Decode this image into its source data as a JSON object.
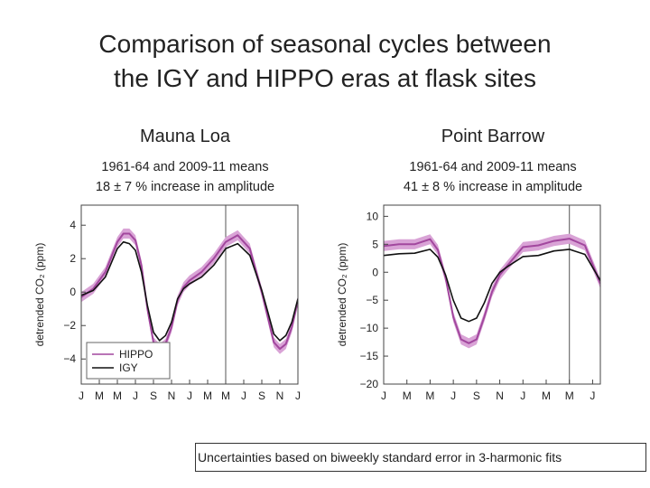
{
  "slide": {
    "title_line1": "Comparison of seasonal cycles between",
    "title_line2": "the IGY and HIPPO eras at flask sites",
    "footnote": "Uncertainties based on biweekly standard error in 3-harmonic fits"
  },
  "sites": [
    {
      "name": "Mauna Loa",
      "means": "1961-64 and 2009-11 means",
      "increase": "18 ± 7 % increase in amplitude"
    },
    {
      "name": "Point Barrow",
      "means": "1961-64 and 2009-11 means",
      "increase": "41 ± 8 % increase in amplitude"
    }
  ],
  "chart_data": [
    {
      "type": "line",
      "ylabel": "detrended CO₂ (ppm)",
      "ylim": [
        -5.5,
        5.2
      ],
      "yticks": [
        -4,
        -2,
        0,
        2,
        4
      ],
      "ytick_labels": [
        "−4",
        "−2",
        "0",
        "2",
        "4"
      ],
      "xlim": [
        0,
        18
      ],
      "xticks": [
        0,
        1.5,
        3,
        4.5,
        6,
        7.5,
        9,
        10.5,
        12,
        13.5,
        15,
        16.5,
        18
      ],
      "xtick_labels": [
        "J",
        "M",
        "M",
        "J",
        "S",
        "N",
        "J",
        "M",
        "M",
        "J",
        "S",
        "N",
        "J"
      ],
      "vline_x": 12,
      "grid": false,
      "legend": "bottom-left",
      "colors": {
        "HIPPO": "#a2479e",
        "HIPPO_band": "#d9a3d6",
        "IGY": "#111111"
      },
      "x": [
        0,
        1,
        2,
        3,
        3.5,
        4,
        4.5,
        5,
        5.5,
        6,
        6.5,
        7,
        7.5,
        8,
        8.5,
        9,
        10,
        11,
        12,
        13,
        14,
        15,
        15.5,
        16,
        16.5,
        17,
        17.5,
        18
      ],
      "series": [
        {
          "name": "HIPPO",
          "band": 0.3,
          "values": [
            -0.3,
            0.2,
            1.2,
            3.0,
            3.5,
            3.5,
            3.1,
            1.6,
            -1.0,
            -3.0,
            -3.4,
            -3.1,
            -2.1,
            -0.5,
            0.3,
            0.7,
            1.2,
            2.0,
            3.0,
            3.4,
            2.6,
            0.0,
            -1.5,
            -3.0,
            -3.4,
            -3.1,
            -2.1,
            -0.5
          ]
        },
        {
          "name": "IGY",
          "band": 0,
          "values": [
            -0.2,
            0.1,
            0.9,
            2.6,
            3.0,
            2.9,
            2.5,
            1.2,
            -0.8,
            -2.4,
            -2.9,
            -2.6,
            -1.8,
            -0.4,
            0.2,
            0.5,
            0.9,
            1.6,
            2.6,
            2.9,
            2.2,
            0.1,
            -1.2,
            -2.5,
            -2.9,
            -2.6,
            -1.8,
            -0.4
          ]
        }
      ]
    },
    {
      "type": "line",
      "ylabel": "detrended CO₂ (ppm)",
      "ylim": [
        -20,
        12
      ],
      "yticks": [
        -20,
        -15,
        -10,
        -5,
        0,
        5,
        10
      ],
      "ytick_labels": [
        "−20",
        "−15",
        "−10",
        "−5",
        "0",
        "5",
        "10"
      ],
      "xlim": [
        0,
        14
      ],
      "xticks": [
        0,
        1.5,
        3,
        4.5,
        6,
        7.5,
        9,
        10.5,
        12,
        13.5
      ],
      "xtick_labels": [
        "J",
        "M",
        "M",
        "J",
        "S",
        "N",
        "J",
        "M",
        "M",
        "J"
      ],
      "vline_x": 12,
      "grid": false,
      "legend": "",
      "colors": {
        "HIPPO": "#a2479e",
        "HIPPO_band": "#d9a3d6",
        "IGY": "#111111"
      },
      "x": [
        0,
        1,
        2,
        3,
        3.5,
        4,
        4.5,
        5,
        5.5,
        6,
        6.5,
        7,
        7.5,
        8,
        9,
        10,
        11,
        12,
        13,
        14
      ],
      "series": [
        {
          "name": "HIPPO",
          "band": 0.9,
          "values": [
            4.7,
            5.0,
            5.0,
            5.9,
            4.0,
            -1.0,
            -8.0,
            -12.0,
            -12.7,
            -12.0,
            -8.0,
            -3.5,
            -0.5,
            1.2,
            4.5,
            4.8,
            5.6,
            6.0,
            4.8,
            -2.0
          ]
        },
        {
          "name": "IGY",
          "band": 0,
          "values": [
            3.0,
            3.3,
            3.4,
            4.1,
            2.7,
            -0.5,
            -5.0,
            -8.2,
            -8.8,
            -8.2,
            -5.5,
            -2.0,
            0.0,
            1.0,
            2.8,
            3.0,
            3.8,
            4.1,
            3.2,
            -1.5
          ]
        }
      ]
    }
  ]
}
